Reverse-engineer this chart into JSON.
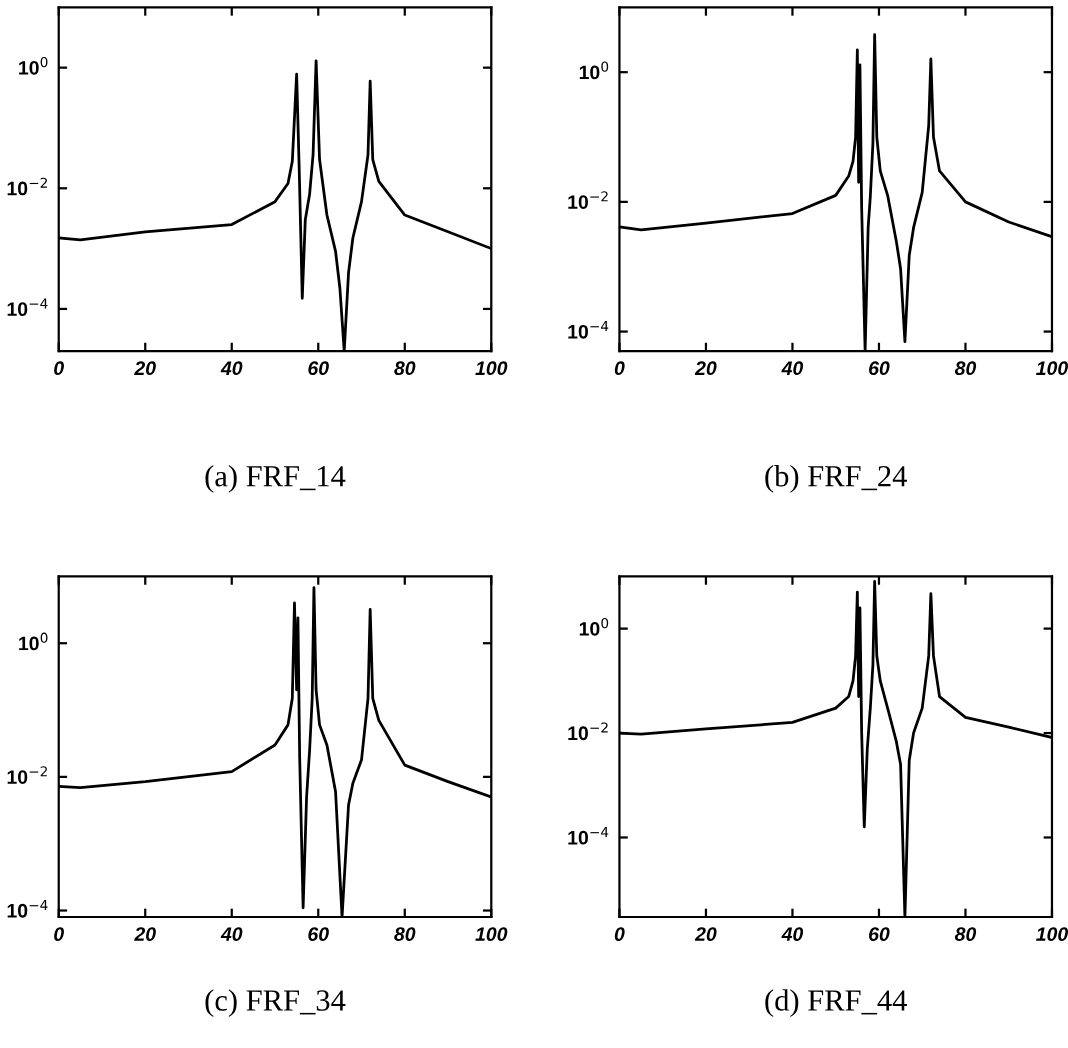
{
  "chart_data": [
    {
      "type": "line",
      "xlabel": "(a) FRF_14",
      "log": "y",
      "grid": false,
      "xlim": [
        0,
        100
      ],
      "ylim": [
        2e-05,
        10
      ],
      "xticks": [
        0,
        20,
        40,
        60,
        80,
        100
      ],
      "yticks": [
        {
          "value": 0.0001,
          "label": "10$^{−4}$"
        },
        {
          "value": 0.01,
          "label": "10$^{−2}$"
        },
        {
          "value": 1,
          "label": "10$^{0}$"
        }
      ],
      "series": [
        {
          "color": "#000000",
          "x": [
            0,
            5,
            20,
            40,
            50,
            53,
            54,
            55,
            55.6,
            56.3,
            57,
            58,
            58.8,
            59.5,
            60.3,
            62,
            64,
            65,
            66,
            67,
            68,
            70,
            71.5,
            72,
            72.6,
            74,
            80,
            90,
            100
          ],
          "values": [
            0.0015,
            0.0014,
            0.0019,
            0.0025,
            0.006,
            0.012,
            0.028,
            0.78,
            0.02,
            0.00015,
            0.003,
            0.008,
            0.036,
            1.3,
            0.03,
            0.0036,
            0.0009,
            0.00022,
            2e-05,
            0.0004,
            0.0015,
            0.006,
            0.036,
            0.6,
            0.03,
            0.013,
            0.0036,
            0.0019,
            0.001
          ]
        }
      ]
    },
    {
      "type": "line",
      "xlabel": "(b) FRF_24",
      "log": "y",
      "grid": false,
      "xlim": [
        0,
        100
      ],
      "ylim": [
        5e-05,
        10
      ],
      "xticks": [
        0,
        20,
        40,
        60,
        80,
        100
      ],
      "yticks": [
        {
          "value": 0.0001,
          "label": "10$^{−4}$"
        },
        {
          "value": 0.01,
          "label": "10$^{−2}$"
        },
        {
          "value": 1,
          "label": "10$^{0}$"
        }
      ],
      "series": [
        {
          "color": "#000000",
          "x": [
            0,
            5,
            20,
            40,
            50,
            53,
            54,
            54.6,
            55,
            55.3,
            55.6,
            56,
            56.8,
            57.5,
            58,
            58.6,
            59,
            59.5,
            60.3,
            62,
            64,
            65,
            66,
            67,
            68,
            70,
            71.5,
            72,
            72.6,
            74,
            80,
            90,
            100
          ],
          "values": [
            0.0041,
            0.0037,
            0.0047,
            0.0066,
            0.0126,
            0.025,
            0.042,
            0.1,
            2.2,
            0.02,
            1.3,
            0.008,
            5e-05,
            0.004,
            0.012,
            0.08,
            3.8,
            0.1,
            0.03,
            0.0126,
            0.0025,
            0.00093,
            7e-05,
            0.0015,
            0.004,
            0.014,
            0.15,
            1.6,
            0.1,
            0.03,
            0.01,
            0.0049,
            0.0029
          ]
        }
      ]
    },
    {
      "type": "line",
      "xlabel": "(c) FRF_34",
      "log": "y",
      "grid": false,
      "xlim": [
        0,
        100
      ],
      "ylim": [
        8e-05,
        10
      ],
      "xticks": [
        0,
        20,
        40,
        60,
        80,
        100
      ],
      "yticks": [
        {
          "value": 0.0001,
          "label": "10$^{−4}$"
        },
        {
          "value": 0.01,
          "label": "10$^{−2}$"
        },
        {
          "value": 1,
          "label": "10$^{0}$"
        }
      ],
      "series": [
        {
          "color": "#000000",
          "x": [
            0,
            5,
            20,
            40,
            50,
            53,
            54,
            54.5,
            55,
            55.3,
            55.7,
            56.5,
            57.3,
            58,
            58.6,
            59,
            59.5,
            60.3,
            62,
            64,
            65.5,
            67,
            68,
            70,
            71.5,
            72,
            72.6,
            74,
            80,
            90,
            100
          ],
          "values": [
            0.0072,
            0.0069,
            0.0085,
            0.012,
            0.03,
            0.06,
            0.15,
            4,
            0.2,
            2.4,
            0.02,
            0.00011,
            0.005,
            0.025,
            0.15,
            6.8,
            0.2,
            0.06,
            0.03,
            0.006,
            8e-05,
            0.0038,
            0.008,
            0.018,
            0.15,
            3.2,
            0.15,
            0.07,
            0.015,
            0.0085,
            0.005
          ]
        }
      ]
    },
    {
      "type": "line",
      "xlabel": "(d) FRF_44",
      "log": "y",
      "grid": false,
      "xlim": [
        0,
        100
      ],
      "ylim": [
        3e-06,
        10
      ],
      "xticks": [
        0,
        20,
        40,
        60,
        80,
        100
      ],
      "yticks": [
        {
          "value": 0.0001,
          "label": "10$^{−4}$"
        },
        {
          "value": 0.01,
          "label": "10$^{−2}$"
        },
        {
          "value": 1,
          "label": "10$^{0}$"
        }
      ],
      "series": [
        {
          "color": "#000000",
          "x": [
            0,
            5,
            20,
            40,
            50,
            53,
            54,
            54.6,
            55,
            55.3,
            55.6,
            56,
            56.6,
            57.3,
            58,
            58.6,
            59,
            59.5,
            60.3,
            62,
            64,
            65,
            66,
            67,
            68,
            70,
            71.5,
            72,
            72.6,
            74,
            80,
            90,
            100
          ],
          "values": [
            0.01,
            0.0095,
            0.012,
            0.016,
            0.03,
            0.05,
            0.1,
            0.3,
            5,
            0.05,
            2.5,
            0.01,
            0.00016,
            0.005,
            0.03,
            0.2,
            8,
            0.3,
            0.1,
            0.03,
            0.007,
            0.0025,
            3e-06,
            0.003,
            0.01,
            0.03,
            0.3,
            4.7,
            0.3,
            0.05,
            0.02,
            0.013,
            0.0082
          ]
        }
      ]
    }
  ]
}
